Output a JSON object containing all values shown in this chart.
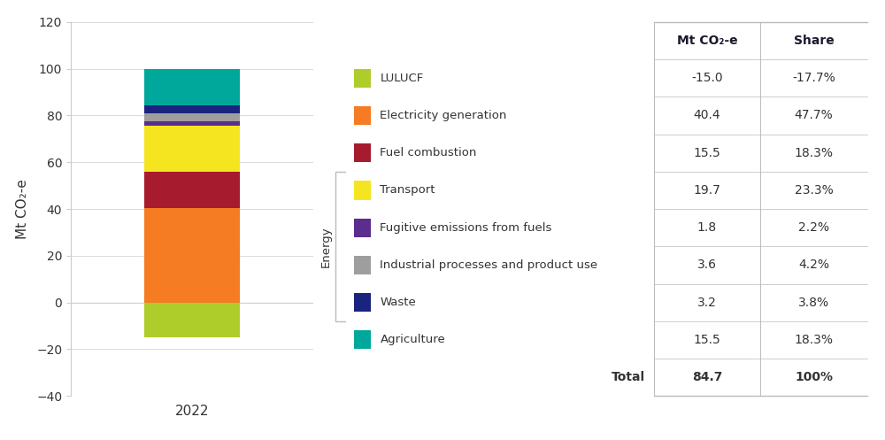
{
  "year": "2022",
  "sectors": [
    {
      "name": "LULUCF",
      "value": -15.0,
      "share": "-17.7%",
      "color": "#AECC2A"
    },
    {
      "name": "Electricity generation",
      "value": 40.4,
      "share": "47.7%",
      "color": "#F57C22"
    },
    {
      "name": "Fuel combustion",
      "value": 15.5,
      "share": "18.3%",
      "color": "#A61C2E"
    },
    {
      "name": "Transport",
      "value": 19.7,
      "share": "23.3%",
      "color": "#F5E521"
    },
    {
      "name": "Fugitive emissions from fuels",
      "value": 1.8,
      "share": "2.2%",
      "color": "#5B2D8E"
    },
    {
      "name": "Industrial processes and product use",
      "value": 3.6,
      "share": "4.2%",
      "color": "#9E9E9E"
    },
    {
      "name": "Waste",
      "value": 3.2,
      "share": "3.8%",
      "color": "#1A237E"
    },
    {
      "name": "Agriculture",
      "value": 15.5,
      "share": "18.3%",
      "color": "#00A89C"
    }
  ],
  "total_value": "84.7",
  "total_share": "100%",
  "ylabel": "Mt CO₂-e",
  "xlabel": "2022",
  "ylim": [
    -40,
    120
  ],
  "yticks": [
    -40,
    -20,
    0,
    20,
    40,
    60,
    80,
    100,
    120
  ],
  "col_headers": [
    "Mt CO₂-e",
    "Share"
  ],
  "energy_bracket_rows": [
    3,
    4,
    5,
    6
  ],
  "background_color": "#FFFFFF",
  "grid_color": "#CCCCCC",
  "divider_color": "#BBBBBB",
  "text_color": "#333333",
  "table_header_color": "#1A1A2E"
}
